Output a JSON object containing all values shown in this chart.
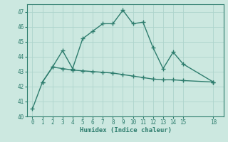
{
  "xlabel": "Humidex (Indice chaleur)",
  "line1_x": [
    0,
    1,
    2,
    3,
    4,
    5,
    6,
    7,
    8,
    9,
    10,
    11,
    12,
    13,
    14,
    15,
    18
  ],
  "line1_y": [
    40.5,
    42.3,
    43.3,
    44.4,
    43.2,
    45.2,
    45.7,
    46.2,
    46.2,
    47.1,
    46.2,
    46.3,
    44.6,
    43.2,
    44.3,
    43.5,
    42.3
  ],
  "line2_x": [
    1,
    2,
    3,
    4,
    5,
    6,
    7,
    8,
    9,
    10,
    11,
    12,
    13,
    14,
    15,
    18
  ],
  "line2_y": [
    42.3,
    43.3,
    43.2,
    43.1,
    43.05,
    43.0,
    42.95,
    42.9,
    42.8,
    42.7,
    42.6,
    42.5,
    42.45,
    42.45,
    42.4,
    42.3
  ],
  "line_color": "#2e7d6e",
  "bg_color": "#cce8e0",
  "grid_color": "#aed4cc",
  "ylim": [
    40,
    47.5
  ],
  "yticks": [
    40,
    41,
    42,
    43,
    44,
    45,
    46,
    47
  ],
  "xticks": [
    0,
    1,
    2,
    3,
    4,
    5,
    6,
    7,
    8,
    9,
    10,
    11,
    12,
    13,
    14,
    15,
    18
  ],
  "marker": "+",
  "markersize": 4,
  "linewidth": 1.0
}
